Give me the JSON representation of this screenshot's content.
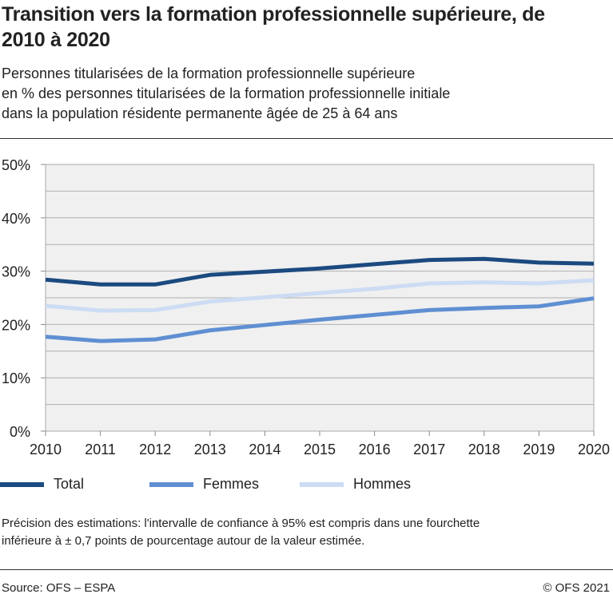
{
  "title": "Transition vers la formation professionnelle supérieure, de 2010 à 2020",
  "subtitle": [
    "Personnes titularisées de la formation professionnelle supérieure",
    "en % des personnes titularisées de la formation professionnelle initiale",
    "dans la population résidente permanente âgée de 25 à 64 ans"
  ],
  "note": [
    "Précision des estimations: l'intervalle de confiance à 95% est compris dans une fourchette",
    "inférieure à ± 0,7 points de pourcentage autour de la valeur estimée."
  ],
  "source": "Source: OFS – ESPA",
  "copyright": "© OFS 2021",
  "chart_data": {
    "type": "line",
    "x": [
      2010,
      2011,
      2012,
      2013,
      2014,
      2015,
      2016,
      2017,
      2018,
      2019,
      2020
    ],
    "ylim": [
      0,
      50
    ],
    "yticks": [
      "0%",
      "10%",
      "20%",
      "30%",
      "40%",
      "50%"
    ],
    "xticks": [
      "2010",
      "2011",
      "2012",
      "2013",
      "2014",
      "2015",
      "2016",
      "2017",
      "2018",
      "2019",
      "2020"
    ],
    "grid": true,
    "legend": "bottom",
    "background": "#f0f0f0",
    "series": [
      {
        "name": "Total",
        "color": "#1b4a80",
        "values": [
          28.4,
          27.5,
          27.5,
          29.3,
          29.9,
          30.5,
          31.3,
          32.1,
          32.3,
          31.6,
          31.4
        ]
      },
      {
        "name": "Femmes",
        "color": "#5f8fd2",
        "values": [
          17.7,
          16.9,
          17.2,
          18.9,
          19.9,
          20.9,
          21.8,
          22.7,
          23.1,
          23.4,
          24.9
        ]
      },
      {
        "name": "Hommes",
        "color": "#ccdcf3",
        "values": [
          23.5,
          22.6,
          22.7,
          24.3,
          25.1,
          25.9,
          26.7,
          27.7,
          27.9,
          27.7,
          28.3
        ]
      }
    ]
  }
}
